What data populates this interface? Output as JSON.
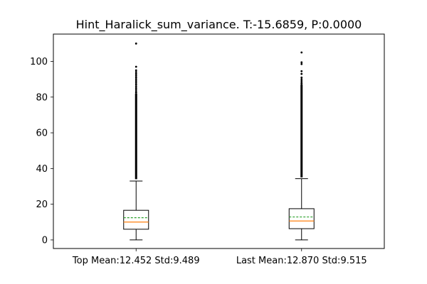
{
  "chart_data": {
    "type": "box",
    "title": "Hint_Haralick_sum_variance. T:-15.6859, P:0.0000",
    "xlabel": "",
    "ylabel": "",
    "ylim": [
      -4.8,
      115.3
    ],
    "yticks": [
      0,
      20,
      40,
      60,
      80,
      100
    ],
    "grid": false,
    "categories": [
      "Top Mean:12.452 Std:9.489",
      "Last Mean:12.870 Std:9.515"
    ],
    "boxes": [
      {
        "label": "Top Mean:12.452 Std:9.489",
        "whisker_low": 0,
        "q1": 6,
        "median": 10,
        "mean": 12.452,
        "q3": 16.6,
        "whisker_high": 33,
        "outliers_dense_from": 34,
        "outliers_dense_to": 82,
        "outliers": [
          82.5,
          83,
          84,
          85,
          86,
          87,
          88,
          89,
          90,
          91,
          92,
          93,
          94,
          95,
          97,
          110
        ]
      },
      {
        "label": "Last Mean:12.870 Std:9.515",
        "whisker_low": 0,
        "q1": 6.3,
        "median": 10.6,
        "mean": 12.87,
        "q3": 17.5,
        "whisker_high": 34.3,
        "outliers_dense_from": 35,
        "outliers_dense_to": 87,
        "outliers": [
          87.5,
          88,
          89,
          90,
          91,
          93,
          94.5,
          98.5,
          99.5,
          105
        ]
      }
    ],
    "colors": {
      "median": "#ff7f0e",
      "mean": "#2ca02c",
      "box": "#000000",
      "outlier": "#000000"
    }
  }
}
